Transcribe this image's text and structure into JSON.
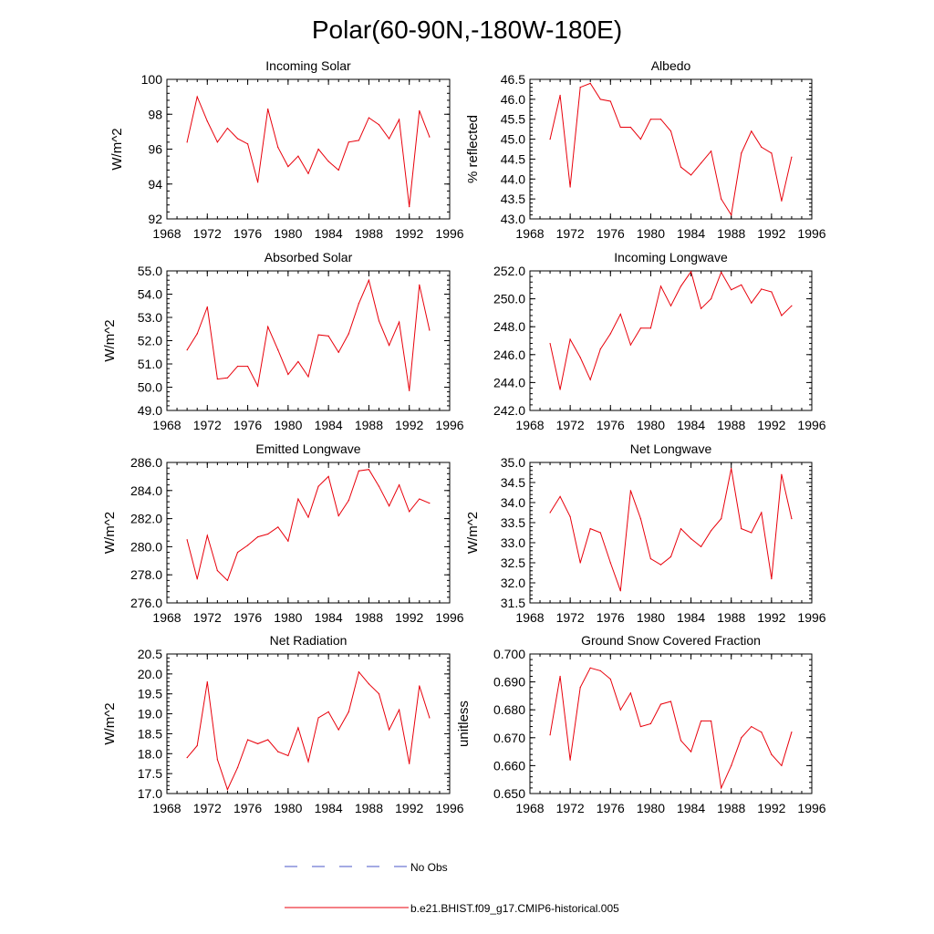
{
  "page_title": "Polar(60-90N,-180W-180E)",
  "colors": {
    "series": "#e8000b",
    "obs": "#4a55c8",
    "axis": "#000000"
  },
  "legend": {
    "obs_label": "No Obs",
    "model_label": "b.e21.BHIST.f09_g17.CMIP6-historical.005"
  },
  "chart_data": [
    {
      "type": "line",
      "title": "Incoming Solar",
      "ylabel": "W/m^2",
      "xlim": [
        1968,
        1996
      ],
      "xticks": [
        1968,
        1972,
        1976,
        1980,
        1984,
        1988,
        1992,
        1996
      ],
      "ylim": [
        92,
        100
      ],
      "yticks": [
        92,
        94,
        96,
        98,
        100
      ],
      "ydec": 0,
      "x": [
        1970,
        1971,
        1972,
        1973,
        1974,
        1975,
        1976,
        1977,
        1978,
        1979,
        1980,
        1981,
        1982,
        1983,
        1984,
        1985,
        1986,
        1987,
        1988,
        1989,
        1990,
        1991,
        1992,
        1993,
        1994
      ],
      "series": [
        {
          "name": "b.e21.BHIST.f09_g17.CMIP6-historical.005",
          "values": [
            96.4,
            99.0,
            97.6,
            96.4,
            97.2,
            96.6,
            96.3,
            94.1,
            98.3,
            96.1,
            95.0,
            95.6,
            94.6,
            96.0,
            95.3,
            94.8,
            96.4,
            96.5,
            97.8,
            97.4,
            96.6,
            97.7,
            92.7,
            98.2,
            96.7
          ]
        }
      ]
    },
    {
      "type": "line",
      "title": "Albedo",
      "ylabel": "% reflected",
      "xlim": [
        1968,
        1996
      ],
      "xticks": [
        1968,
        1972,
        1976,
        1980,
        1984,
        1988,
        1992,
        1996
      ],
      "ylim": [
        43.0,
        46.5
      ],
      "yticks": [
        43.0,
        43.5,
        44.0,
        44.5,
        45.0,
        45.5,
        46.0,
        46.5
      ],
      "ydec": 1,
      "x": [
        1970,
        1971,
        1972,
        1973,
        1974,
        1975,
        1976,
        1977,
        1978,
        1979,
        1980,
        1981,
        1982,
        1983,
        1984,
        1985,
        1986,
        1987,
        1988,
        1989,
        1990,
        1991,
        1992,
        1993,
        1994
      ],
      "series": [
        {
          "name": "b.e21.BHIST.f09_g17.CMIP6-historical.005",
          "values": [
            45.0,
            46.1,
            43.8,
            46.3,
            46.4,
            46.0,
            45.95,
            45.3,
            45.3,
            45.0,
            45.5,
            45.5,
            45.2,
            44.3,
            44.1,
            44.4,
            44.7,
            43.5,
            43.1,
            44.65,
            45.2,
            44.8,
            44.65,
            43.45,
            44.55
          ]
        }
      ]
    },
    {
      "type": "line",
      "title": "Absorbed Solar",
      "ylabel": "W/m^2",
      "xlim": [
        1968,
        1996
      ],
      "xticks": [
        1968,
        1972,
        1976,
        1980,
        1984,
        1988,
        1992,
        1996
      ],
      "ylim": [
        49.0,
        55.0
      ],
      "yticks": [
        49.0,
        50.0,
        51.0,
        52.0,
        53.0,
        54.0,
        55.0
      ],
      "ydec": 1,
      "x": [
        1970,
        1971,
        1972,
        1973,
        1974,
        1975,
        1976,
        1977,
        1978,
        1979,
        1980,
        1981,
        1982,
        1983,
        1984,
        1985,
        1986,
        1987,
        1988,
        1989,
        1990,
        1991,
        1992,
        1993,
        1994
      ],
      "series": [
        {
          "name": "b.e21.BHIST.f09_g17.CMIP6-historical.005",
          "values": [
            51.6,
            52.3,
            53.45,
            50.35,
            50.4,
            50.9,
            50.9,
            50.05,
            52.6,
            51.6,
            50.55,
            51.1,
            50.45,
            52.25,
            52.2,
            51.5,
            52.3,
            53.6,
            54.6,
            52.85,
            51.8,
            52.8,
            49.85,
            54.4,
            52.45
          ]
        }
      ]
    },
    {
      "type": "line",
      "title": "Incoming Longwave",
      "ylabel": "",
      "xlim": [
        1968,
        1996
      ],
      "xticks": [
        1968,
        1972,
        1976,
        1980,
        1984,
        1988,
        1992,
        1996
      ],
      "ylim": [
        242.0,
        252.0
      ],
      "yticks": [
        242.0,
        244.0,
        246.0,
        248.0,
        250.0,
        252.0
      ],
      "ydec": 1,
      "x": [
        1970,
        1971,
        1972,
        1973,
        1974,
        1975,
        1976,
        1977,
        1978,
        1979,
        1980,
        1981,
        1982,
        1983,
        1984,
        1985,
        1986,
        1987,
        1988,
        1989,
        1990,
        1991,
        1992,
        1993,
        1994
      ],
      "series": [
        {
          "name": "b.e21.BHIST.f09_g17.CMIP6-historical.005",
          "values": [
            246.8,
            243.5,
            247.1,
            245.8,
            244.2,
            246.4,
            247.5,
            248.9,
            246.7,
            247.9,
            247.9,
            250.9,
            249.5,
            250.9,
            251.95,
            249.3,
            250.0,
            251.9,
            250.65,
            251.0,
            249.7,
            250.7,
            250.5,
            248.8,
            249.5
          ]
        }
      ]
    },
    {
      "type": "line",
      "title": "Emitted Longwave",
      "ylabel": "W/m^2",
      "xlim": [
        1968,
        1996
      ],
      "xticks": [
        1968,
        1972,
        1976,
        1980,
        1984,
        1988,
        1992,
        1996
      ],
      "ylim": [
        276.0,
        286.0
      ],
      "yticks": [
        276.0,
        278.0,
        280.0,
        282.0,
        284.0,
        286.0
      ],
      "ydec": 1,
      "x": [
        1970,
        1971,
        1972,
        1973,
        1974,
        1975,
        1976,
        1977,
        1978,
        1979,
        1980,
        1981,
        1982,
        1983,
        1984,
        1985,
        1986,
        1987,
        1988,
        1989,
        1990,
        1991,
        1992,
        1993,
        1994
      ],
      "series": [
        {
          "name": "b.e21.BHIST.f09_g17.CMIP6-historical.005",
          "values": [
            280.5,
            277.7,
            280.8,
            278.3,
            277.6,
            279.6,
            280.1,
            280.7,
            280.9,
            281.4,
            280.4,
            283.4,
            282.1,
            284.3,
            285.0,
            282.2,
            283.3,
            285.4,
            285.5,
            284.3,
            282.9,
            284.4,
            282.5,
            283.4,
            283.1
          ]
        }
      ]
    },
    {
      "type": "line",
      "title": "Net Longwave",
      "ylabel": "W/m^2",
      "xlim": [
        1968,
        1996
      ],
      "xticks": [
        1968,
        1972,
        1976,
        1980,
        1984,
        1988,
        1992,
        1996
      ],
      "ylim": [
        31.5,
        35.0
      ],
      "yticks": [
        31.5,
        32.0,
        32.5,
        33.0,
        33.5,
        34.0,
        34.5,
        35.0
      ],
      "ydec": 1,
      "x": [
        1970,
        1971,
        1972,
        1973,
        1974,
        1975,
        1976,
        1977,
        1978,
        1979,
        1980,
        1981,
        1982,
        1983,
        1984,
        1985,
        1986,
        1987,
        1988,
        1989,
        1990,
        1991,
        1992,
        1993,
        1994
      ],
      "series": [
        {
          "name": "b.e21.BHIST.f09_g17.CMIP6-historical.005",
          "values": [
            33.75,
            34.15,
            33.65,
            32.5,
            33.35,
            33.25,
            32.5,
            31.8,
            34.3,
            33.6,
            32.6,
            32.45,
            32.65,
            33.35,
            33.1,
            32.9,
            33.3,
            33.6,
            34.85,
            33.35,
            33.25,
            33.75,
            32.1,
            34.7,
            33.6
          ]
        }
      ]
    },
    {
      "type": "line",
      "title": "Net Radiation",
      "ylabel": "W/m^2",
      "xlim": [
        1968,
        1996
      ],
      "xticks": [
        1968,
        1972,
        1976,
        1980,
        1984,
        1988,
        1992,
        1996
      ],
      "ylim": [
        17.0,
        20.5
      ],
      "yticks": [
        17.0,
        17.5,
        18.0,
        18.5,
        19.0,
        19.5,
        20.0,
        20.5
      ],
      "ydec": 1,
      "x": [
        1970,
        1971,
        1972,
        1973,
        1974,
        1975,
        1976,
        1977,
        1978,
        1979,
        1980,
        1981,
        1982,
        1983,
        1984,
        1985,
        1986,
        1987,
        1988,
        1989,
        1990,
        1991,
        1992,
        1993,
        1994
      ],
      "series": [
        {
          "name": "b.e21.BHIST.f09_g17.CMIP6-historical.005",
          "values": [
            17.9,
            18.2,
            19.8,
            17.85,
            17.1,
            17.65,
            18.35,
            18.25,
            18.35,
            18.05,
            17.95,
            18.65,
            17.8,
            18.9,
            19.05,
            18.6,
            19.05,
            20.05,
            19.75,
            19.5,
            18.6,
            19.1,
            17.75,
            19.7,
            18.9
          ]
        }
      ]
    },
    {
      "type": "line",
      "title": "Ground Snow Covered Fraction",
      "ylabel": "unitless",
      "xlim": [
        1968,
        1996
      ],
      "xticks": [
        1968,
        1972,
        1976,
        1980,
        1984,
        1988,
        1992,
        1996
      ],
      "ylim": [
        0.65,
        0.7
      ],
      "yticks": [
        0.65,
        0.66,
        0.67,
        0.68,
        0.69,
        0.7
      ],
      "ydec": 3,
      "x": [
        1970,
        1971,
        1972,
        1973,
        1974,
        1975,
        1976,
        1977,
        1978,
        1979,
        1980,
        1981,
        1982,
        1983,
        1984,
        1985,
        1986,
        1987,
        1988,
        1989,
        1990,
        1991,
        1992,
        1993,
        1994
      ],
      "series": [
        {
          "name": "b.e21.BHIST.f09_g17.CMIP6-historical.005",
          "values": [
            0.671,
            0.692,
            0.662,
            0.688,
            0.695,
            0.694,
            0.691,
            0.68,
            0.686,
            0.674,
            0.675,
            0.682,
            0.683,
            0.669,
            0.665,
            0.676,
            0.676,
            0.652,
            0.66,
            0.67,
            0.674,
            0.672,
            0.664,
            0.66,
            0.672
          ]
        }
      ]
    }
  ]
}
